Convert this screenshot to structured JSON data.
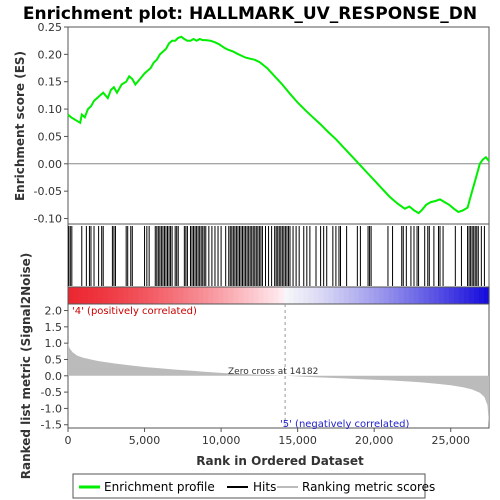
{
  "chart_data": {
    "type": "line",
    "title": "Enrichment plot: HALLMARK_UV_RESPONSE_DN",
    "rank_max": 27500,
    "es_panel": {
      "ylabel": "Enrichment score (ES)",
      "ylim": [
        -0.11,
        0.25
      ],
      "yticks": [
        "0.25",
        "0.20",
        "0.15",
        "0.10",
        "0.05",
        "0.00",
        "-0.05",
        "-0.10"
      ],
      "ytick_values": [
        0.25,
        0.2,
        0.15,
        0.1,
        0.05,
        0.0,
        -0.05,
        -0.1
      ],
      "color": "#00ee00",
      "x": [
        0,
        200,
        800,
        900,
        1100,
        1300,
        1500,
        1700,
        1900,
        2100,
        2300,
        2600,
        2800,
        3000,
        3200,
        3500,
        3800,
        4000,
        4200,
        4400,
        4700,
        5000,
        5200,
        5400,
        5600,
        5800,
        6000,
        6200,
        6400,
        6600,
        6800,
        7000,
        7200,
        7400,
        7600,
        7800,
        8000,
        8200,
        8400,
        8600,
        8800,
        9000,
        9300,
        9600,
        9900,
        10200,
        10500,
        10800,
        11000,
        11300,
        11600,
        11900,
        12200,
        12500,
        13000,
        13500,
        14000,
        14500,
        15000,
        15500,
        16000,
        16500,
        17000,
        17500,
        18000,
        18500,
        19000,
        19500,
        20000,
        20500,
        21000,
        21500,
        22000,
        22300,
        22600,
        22900,
        23100,
        23400,
        23700,
        24000,
        24300,
        24600,
        24900,
        25200,
        25500,
        25800,
        26100,
        26300,
        26500,
        26700,
        26900,
        27100,
        27300,
        27500
      ],
      "y": [
        0.09,
        0.085,
        0.075,
        0.09,
        0.085,
        0.1,
        0.105,
        0.115,
        0.12,
        0.125,
        0.13,
        0.12,
        0.135,
        0.14,
        0.13,
        0.145,
        0.15,
        0.16,
        0.155,
        0.145,
        0.155,
        0.165,
        0.17,
        0.175,
        0.185,
        0.19,
        0.2,
        0.205,
        0.21,
        0.22,
        0.225,
        0.225,
        0.23,
        0.232,
        0.228,
        0.225,
        0.225,
        0.228,
        0.225,
        0.228,
        0.226,
        0.226,
        0.225,
        0.222,
        0.218,
        0.212,
        0.208,
        0.205,
        0.202,
        0.198,
        0.194,
        0.192,
        0.19,
        0.186,
        0.175,
        0.16,
        0.145,
        0.128,
        0.112,
        0.098,
        0.085,
        0.072,
        0.058,
        0.045,
        0.03,
        0.015,
        0.0,
        -0.015,
        -0.03,
        -0.045,
        -0.06,
        -0.072,
        -0.082,
        -0.078,
        -0.085,
        -0.09,
        -0.085,
        -0.075,
        -0.07,
        -0.068,
        -0.065,
        -0.07,
        -0.075,
        -0.082,
        -0.088,
        -0.085,
        -0.08,
        -0.06,
        -0.04,
        -0.02,
        0.0,
        0.008,
        0.012,
        0.005
      ]
    },
    "hits": [
      50,
      150,
      250,
      900,
      1200,
      1400,
      1500,
      1700,
      2000,
      2200,
      2300,
      2900,
      3000,
      3100,
      3800,
      3900,
      4100,
      4200,
      5000,
      5150,
      5300,
      5700,
      5800,
      5900,
      6000,
      6100,
      6200,
      6300,
      6400,
      6500,
      6600,
      6700,
      6800,
      7000,
      7100,
      7200,
      7600,
      7700,
      7800,
      8000,
      8100,
      8200,
      8300,
      8400,
      8500,
      8600,
      8700,
      8800,
      8900,
      9000,
      9200,
      9400,
      9600,
      9800,
      10000,
      10300,
      10500,
      10600,
      10700,
      10800,
      10900,
      11000,
      11100,
      11200,
      11300,
      11400,
      11500,
      11600,
      11700,
      11800,
      11900,
      12000,
      12100,
      12200,
      12300,
      12400,
      12500,
      12600,
      12700,
      12900,
      13100,
      13300,
      13500,
      13600,
      13700,
      13800,
      13900,
      14000,
      14100,
      14200,
      14300,
      14400,
      14500,
      14700,
      14900,
      15100,
      15400,
      15600,
      15800,
      16200,
      16500,
      16700,
      16900,
      17300,
      17500,
      17700,
      17800,
      18200,
      18900,
      19100,
      19600,
      19700,
      19800,
      20900,
      21200,
      21800,
      21900,
      22100,
      22400,
      22600,
      22800,
      22900,
      23300,
      23500,
      23600,
      23900,
      24200,
      24300,
      24500,
      25300,
      25700,
      26100,
      26200,
      26300,
      26400,
      26500,
      26600,
      26700,
      26800,
      27000,
      27200
    ],
    "metric_panel": {
      "ylabel": "Ranked list metric (Signal2Noise)",
      "ylim": [
        -1.6,
        2.2
      ],
      "yticks": [
        "2.0",
        "1.5",
        "1.0",
        "0.5",
        "0.0",
        "-0.5",
        "-1.0",
        "-1.5"
      ],
      "ytick_values": [
        2.0,
        1.5,
        1.0,
        0.5,
        0.0,
        -0.5,
        -1.0,
        -1.5
      ],
      "x": [
        0,
        100,
        300,
        600,
        1000,
        1500,
        2000,
        3000,
        4000,
        5000,
        6000,
        7000,
        8000,
        9000,
        10000,
        11000,
        12000,
        13000,
        14182,
        15000,
        16000,
        17000,
        18000,
        19000,
        20000,
        21000,
        22000,
        23000,
        24000,
        25000,
        25800,
        26400,
        26900,
        27200,
        27400,
        27500
      ],
      "values": [
        1.0,
        0.85,
        0.72,
        0.62,
        0.55,
        0.5,
        0.45,
        0.38,
        0.32,
        0.27,
        0.23,
        0.19,
        0.16,
        0.12,
        0.09,
        0.06,
        0.04,
        0.02,
        0.0,
        -0.02,
        -0.04,
        -0.06,
        -0.08,
        -0.1,
        -0.12,
        -0.14,
        -0.17,
        -0.2,
        -0.24,
        -0.29,
        -0.35,
        -0.42,
        -0.52,
        -0.65,
        -0.9,
        -1.5
      ]
    },
    "xlabel": "Rank in Ordered Dataset",
    "xticks": [
      "0",
      "5,000",
      "10,000",
      "15,000",
      "20,000",
      "25,000"
    ],
    "xtick_values": [
      0,
      5000,
      10000,
      15000,
      20000,
      25000
    ],
    "annotations": {
      "positive": "'4' (positively correlated)",
      "negative": "'5' (negatively correlated)",
      "zero_cross": "Zero cross at 14182",
      "zero_cross_rank": 14182
    },
    "legend": {
      "position": "bottom",
      "items": [
        "Enrichment profile",
        "Hits",
        "Ranking metric scores"
      ],
      "colors": [
        "#00ee00",
        "#000000",
        "#bbbbbb"
      ]
    }
  }
}
